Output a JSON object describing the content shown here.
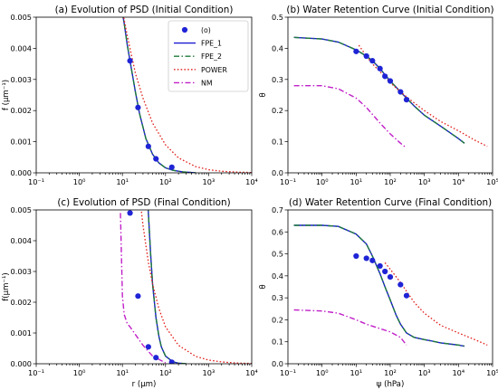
{
  "colors": {
    "obs": "#1f24d6",
    "fpe1": "#1a1acf",
    "fpe2": "#1e7b3a",
    "power": "#e0201c",
    "nm": "#c020c8"
  },
  "chart_data": [
    {
      "panel": "a",
      "type": "line",
      "title": "(a) Evolution of PSD (Initial Condition)",
      "xlabel": "",
      "ylabel": "f (μm⁻¹)",
      "xscale": "log",
      "xlim": [
        0.1,
        10000
      ],
      "ylim": [
        0,
        0.005
      ],
      "xticks": [
        "10⁻¹",
        "10⁰",
        "10¹",
        "10²",
        "10³",
        "10⁴"
      ],
      "yticks": [
        "0.000",
        "0.001",
        "0.002",
        "0.003",
        "0.004",
        "0.005"
      ],
      "legend": {
        "position": "upper right",
        "entries": [
          {
            "key": "obs",
            "label": "(o)",
            "style": "marker"
          },
          {
            "key": "fpe1",
            "label": "FPE_1",
            "style": "solid"
          },
          {
            "key": "fpe2",
            "label": "FPE_2",
            "style": "dashdot"
          },
          {
            "key": "power",
            "label": "POWER",
            "style": "dotted"
          },
          {
            "key": "nm",
            "label": "NM",
            "style": "dashdot"
          }
        ]
      },
      "series": [
        {
          "key": "obs",
          "name": "(o)",
          "style": "marker",
          "x": [
            15,
            23,
            40,
            60,
            140
          ],
          "y": [
            0.0036,
            0.0021,
            0.00085,
            0.00045,
            0.00018
          ]
        },
        {
          "key": "fpe1",
          "name": "FPE_1",
          "style": "solid",
          "x": [
            9,
            11,
            13,
            15,
            20,
            25,
            35,
            50,
            70,
            100,
            150,
            250,
            500
          ],
          "y": [
            0.0055,
            0.0048,
            0.0041,
            0.0036,
            0.0026,
            0.0019,
            0.0011,
            0.0006,
            0.00032,
            0.00016,
            8e-05,
            3e-05,
            0.0
          ]
        },
        {
          "key": "fpe2",
          "name": "FPE_2",
          "style": "dashdot",
          "x": [
            9,
            11,
            13,
            15,
            20,
            25,
            35,
            50,
            70,
            100,
            150,
            250,
            500
          ],
          "y": [
            0.0055,
            0.0048,
            0.0041,
            0.0036,
            0.0026,
            0.0019,
            0.0011,
            0.0006,
            0.00032,
            0.00016,
            8e-05,
            3e-05,
            0.0
          ]
        },
        {
          "key": "power",
          "name": "POWER",
          "style": "dotted",
          "x": [
            10,
            13,
            15,
            20,
            30,
            50,
            100,
            200,
            500,
            1000,
            2000,
            5000,
            10000
          ],
          "y": [
            0.0052,
            0.0044,
            0.004,
            0.0032,
            0.0024,
            0.0016,
            0.0009,
            0.00048,
            0.0002,
            0.0001,
            5e-05,
            2e-05,
            1e-05
          ]
        }
      ]
    },
    {
      "panel": "b",
      "type": "line",
      "title": "(b) Water Retention Curve (Initial Condition)",
      "xlabel": "",
      "ylabel": "θ",
      "xscale": "log",
      "xlim": [
        0.1,
        100000
      ],
      "ylim": [
        0,
        0.5
      ],
      "xticks": [
        "10⁻¹",
        "10⁰",
        "10¹",
        "10²",
        "10³",
        "10⁴",
        "10⁵"
      ],
      "yticks": [
        "0.0",
        "0.1",
        "0.2",
        "0.3",
        "0.4",
        "0.5"
      ],
      "series": [
        {
          "key": "obs",
          "name": "(o)",
          "style": "marker",
          "x": [
            10,
            20,
            30,
            50,
            70,
            100,
            200,
            300
          ],
          "y": [
            0.39,
            0.375,
            0.36,
            0.335,
            0.31,
            0.295,
            0.26,
            0.235
          ]
        },
        {
          "key": "fpe1",
          "name": "FPE_1",
          "style": "solid",
          "x": [
            0.15,
            1,
            3,
            10,
            20,
            30,
            50,
            70,
            100,
            200,
            300,
            500,
            1000,
            3000,
            10000,
            15000
          ],
          "y": [
            0.435,
            0.43,
            0.42,
            0.395,
            0.375,
            0.36,
            0.335,
            0.315,
            0.295,
            0.26,
            0.24,
            0.215,
            0.185,
            0.15,
            0.11,
            0.095
          ]
        },
        {
          "key": "fpe2",
          "name": "FPE_2",
          "style": "dashdot",
          "x": [
            0.15,
            1,
            3,
            10,
            20,
            30,
            50,
            70,
            100,
            200,
            300,
            500,
            1000,
            3000,
            10000,
            15000
          ],
          "y": [
            0.435,
            0.43,
            0.42,
            0.395,
            0.375,
            0.36,
            0.335,
            0.315,
            0.295,
            0.26,
            0.24,
            0.215,
            0.185,
            0.15,
            0.11,
            0.095
          ]
        },
        {
          "key": "power",
          "name": "POWER",
          "style": "dotted",
          "x": [
            12,
            20,
            30,
            50,
            100,
            200,
            500,
            1000,
            3000,
            10000,
            30000,
            70000
          ],
          "y": [
            0.41,
            0.375,
            0.35,
            0.325,
            0.29,
            0.26,
            0.225,
            0.2,
            0.165,
            0.135,
            0.105,
            0.085
          ]
        },
        {
          "key": "nm",
          "name": "NM",
          "style": "dashdot",
          "x": [
            0.15,
            1,
            3,
            10,
            20,
            50,
            100,
            200,
            300
          ],
          "y": [
            0.28,
            0.28,
            0.27,
            0.24,
            0.21,
            0.16,
            0.125,
            0.095,
            0.08
          ]
        }
      ]
    },
    {
      "panel": "c",
      "type": "line",
      "title": "(c) Evolution of PSD (Final Condition)",
      "xlabel": "r (μm)",
      "ylabel": "f(μm⁻¹)",
      "xscale": "log",
      "xlim": [
        0.1,
        10000
      ],
      "ylim": [
        0,
        0.005
      ],
      "xticks": [
        "10⁻¹",
        "10⁰",
        "10¹",
        "10²",
        "10³",
        "10⁴"
      ],
      "yticks": [
        "0.000",
        "0.001",
        "0.002",
        "0.003",
        "0.004",
        "0.005"
      ],
      "series": [
        {
          "key": "obs",
          "name": "(o)",
          "style": "marker",
          "x": [
            15,
            23,
            40,
            60,
            140
          ],
          "y": [
            0.0049,
            0.0022,
            0.00055,
            0.0002,
            5e-05
          ]
        },
        {
          "key": "fpe1",
          "name": "FPE_1",
          "style": "solid",
          "x": [
            38,
            40,
            45,
            50,
            60,
            70,
            80,
            100,
            150,
            200,
            300
          ],
          "y": [
            0.0055,
            0.0049,
            0.0036,
            0.0026,
            0.0015,
            0.0009,
            0.00055,
            0.00025,
            6e-05,
            2e-05,
            0.0
          ]
        },
        {
          "key": "fpe2",
          "name": "FPE_2",
          "style": "dashdot",
          "x": [
            38,
            40,
            45,
            50,
            60,
            70,
            80,
            100,
            150,
            200,
            300
          ],
          "y": [
            0.0055,
            0.0049,
            0.0036,
            0.0026,
            0.0015,
            0.0009,
            0.00055,
            0.00025,
            6e-05,
            2e-05,
            0.0
          ]
        },
        {
          "key": "power",
          "name": "POWER",
          "style": "dotted",
          "x": [
            25,
            30,
            40,
            50,
            70,
            100,
            200,
            500,
            1000,
            2000,
            5000,
            10000
          ],
          "y": [
            0.0055,
            0.0045,
            0.0033,
            0.0026,
            0.0018,
            0.0012,
            0.0006,
            0.00024,
            0.00012,
            6e-05,
            2e-05,
            1e-05
          ]
        },
        {
          "key": "nm",
          "name": "NM",
          "style": "dashdot",
          "x": [
            9,
            9.5,
            10,
            11,
            13,
            15,
            20,
            30,
            50,
            100
          ],
          "y": [
            0.0049,
            0.0035,
            0.0022,
            0.0016,
            0.0013,
            0.0012,
            0.00095,
            0.0006,
            0.00025,
            3e-05
          ]
        }
      ]
    },
    {
      "panel": "d",
      "type": "line",
      "title": "(d) Water Retention Curve (Final Condition)",
      "xlabel": "ψ (hPa)",
      "ylabel": "θ",
      "xscale": "log",
      "xlim": [
        0.1,
        100000
      ],
      "ylim": [
        0,
        0.7
      ],
      "xticks": [
        "10⁻¹",
        "10⁰",
        "10¹",
        "10²",
        "10³",
        "10⁴",
        "10⁵"
      ],
      "yticks": [
        "0.0",
        "0.1",
        "0.2",
        "0.3",
        "0.4",
        "0.5",
        "0.6",
        "0.7"
      ],
      "series": [
        {
          "key": "obs",
          "name": "(o)",
          "style": "marker",
          "x": [
            10,
            20,
            30,
            50,
            70,
            100,
            200,
            300
          ],
          "y": [
            0.49,
            0.48,
            0.47,
            0.445,
            0.42,
            0.395,
            0.36,
            0.31
          ]
        },
        {
          "key": "fpe1",
          "name": "FPE_1",
          "style": "solid",
          "x": [
            0.15,
            1,
            3,
            10,
            20,
            30,
            50,
            70,
            100,
            150,
            200,
            300,
            500,
            1000,
            1500,
            3000,
            10000,
            15000
          ],
          "y": [
            0.63,
            0.63,
            0.625,
            0.59,
            0.545,
            0.49,
            0.41,
            0.35,
            0.29,
            0.22,
            0.18,
            0.14,
            0.12,
            0.11,
            0.105,
            0.095,
            0.085,
            0.08
          ]
        },
        {
          "key": "fpe2",
          "name": "FPE_2",
          "style": "dashdot",
          "x": [
            0.15,
            1,
            3,
            10,
            20,
            30,
            50,
            70,
            100,
            150,
            200,
            300,
            500,
            1000,
            1500,
            3000,
            10000,
            15000
          ],
          "y": [
            0.63,
            0.63,
            0.625,
            0.59,
            0.545,
            0.49,
            0.41,
            0.35,
            0.29,
            0.22,
            0.18,
            0.14,
            0.12,
            0.11,
            0.105,
            0.095,
            0.085,
            0.08
          ]
        },
        {
          "key": "power",
          "name": "POWER",
          "style": "dotted",
          "x": [
            70,
            100,
            200,
            300,
            500,
            1000,
            3000,
            10000,
            30000,
            70000
          ],
          "y": [
            0.46,
            0.43,
            0.37,
            0.33,
            0.28,
            0.23,
            0.175,
            0.14,
            0.11,
            0.085
          ]
        },
        {
          "key": "nm",
          "name": "NM",
          "style": "dashdot",
          "x": [
            0.15,
            1,
            3,
            10,
            20,
            50,
            100,
            200,
            300
          ],
          "y": [
            0.245,
            0.24,
            0.23,
            0.2,
            0.18,
            0.16,
            0.145,
            0.12,
            0.085
          ]
        }
      ]
    }
  ]
}
